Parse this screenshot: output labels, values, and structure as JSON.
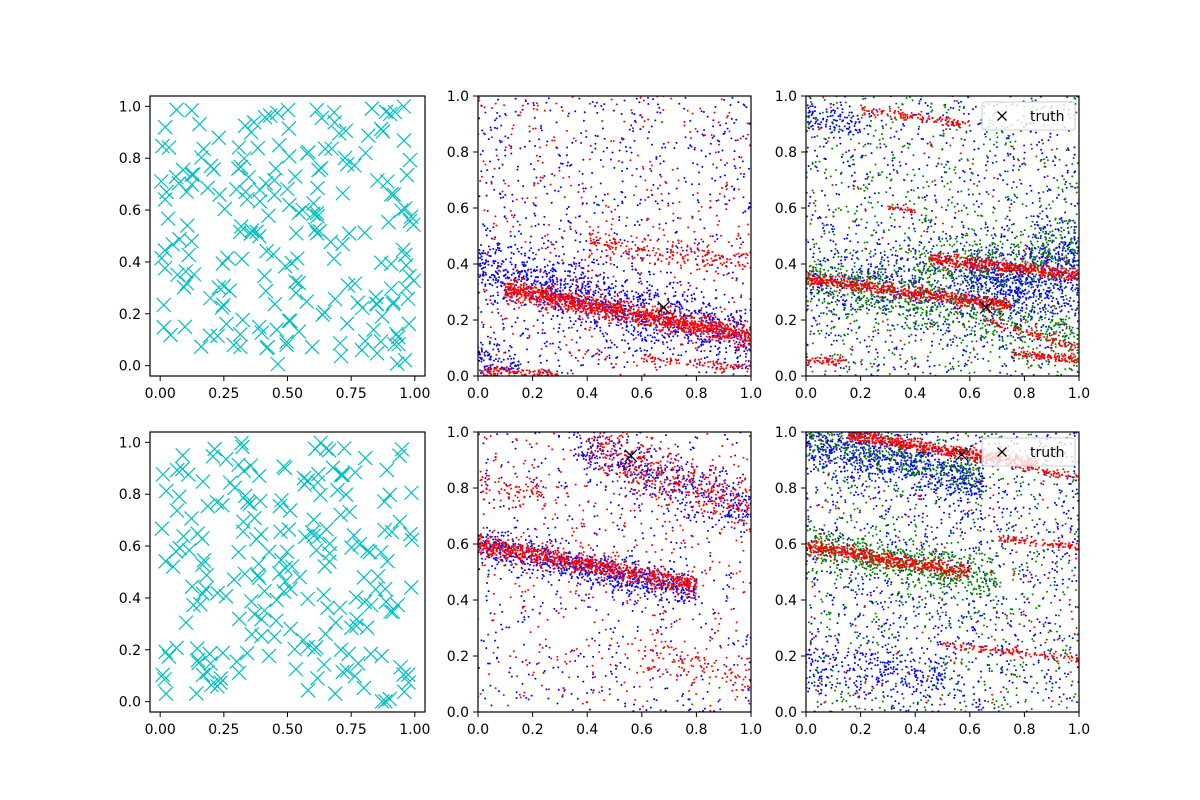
{
  "figure": {
    "background": "#ffffff"
  },
  "colors": {
    "cyan": "#00bfbf",
    "blue": "#0000ff",
    "red": "#ff0000",
    "green": "#008000",
    "black": "#000000"
  },
  "chart_data": [
    {
      "panel": "top-left",
      "type": "scatter",
      "marker": "x",
      "xlim": [
        -0.04,
        1.04
      ],
      "ylim": [
        -0.04,
        1.04
      ],
      "xticks": [
        0.0,
        0.25,
        0.5,
        0.75,
        1.0
      ],
      "xtick_labels": [
        "0.00",
        "0.25",
        "0.50",
        "0.75",
        "1.00"
      ],
      "yticks": [
        0.0,
        0.2,
        0.4,
        0.6,
        0.8,
        1.0
      ],
      "ytick_labels": [
        "0.0",
        "0.2",
        "0.4",
        "0.6",
        "0.8",
        "1.0"
      ],
      "grid": false,
      "series": [
        {
          "color": "#00bfbf",
          "count": 210,
          "distribution": "uniform",
          "x_range": [
            0,
            1
          ],
          "y_range": [
            0,
            1
          ]
        }
      ]
    },
    {
      "panel": "top-middle",
      "type": "scatter",
      "marker": "point",
      "xlim": [
        0,
        1
      ],
      "ylim": [
        0,
        1
      ],
      "xticks": [
        0.0,
        0.2,
        0.4,
        0.6,
        0.8,
        1.0
      ],
      "xtick_labels": [
        "0.0",
        "0.2",
        "0.4",
        "0.6",
        "0.8",
        "1.0"
      ],
      "yticks": [
        0.0,
        0.2,
        0.4,
        0.6,
        0.8,
        1.0
      ],
      "ytick_labels": [
        "0.0",
        "0.2",
        "0.4",
        "0.6",
        "0.8",
        "1.0"
      ],
      "grid": false,
      "truth": {
        "x": 0.68,
        "y": 0.245
      },
      "series": [
        {
          "color": "#0000ff",
          "count": 1900,
          "bands": [
            {
              "x_range": [
                0,
                1
              ],
              "y_start": 0.4,
              "y_end": 0.12,
              "spread": 0.06,
              "share": 0.55
            },
            {
              "x_range": [
                0,
                0.15
              ],
              "y_start": 0.06,
              "y_end": 0.03,
              "spread": 0.03,
              "share": 0.05
            }
          ],
          "background_share": 0.4
        },
        {
          "color": "#ff0000",
          "count": 2200,
          "bands": [
            {
              "x_range": [
                0.1,
                1
              ],
              "y_start": 0.31,
              "y_end": 0.14,
              "spread": 0.02,
              "share": 0.6
            },
            {
              "x_range": [
                0.4,
                1
              ],
              "y_start": 0.48,
              "y_end": 0.4,
              "spread": 0.025,
              "share": 0.1
            },
            {
              "x_range": [
                0,
                0.3
              ],
              "y_start": 0.02,
              "y_end": 0.0,
              "spread": 0.01,
              "share": 0.06
            },
            {
              "x_range": [
                0.6,
                1
              ],
              "y_start": 0.06,
              "y_end": 0.03,
              "spread": 0.01,
              "share": 0.04
            }
          ],
          "background_share": 0.2
        }
      ]
    },
    {
      "panel": "top-right",
      "type": "scatter",
      "marker": "point",
      "xlim": [
        0,
        1
      ],
      "ylim": [
        0,
        1
      ],
      "xticks": [
        0.0,
        0.2,
        0.4,
        0.6,
        0.8,
        1.0
      ],
      "xtick_labels": [
        "0.0",
        "0.2",
        "0.4",
        "0.6",
        "0.8",
        "1.0"
      ],
      "yticks": [
        0.0,
        0.2,
        0.4,
        0.6,
        0.8,
        1.0
      ],
      "ytick_labels": [
        "0.0",
        "0.2",
        "0.4",
        "0.6",
        "0.8",
        "1.0"
      ],
      "grid": false,
      "legend": {
        "placement": "upper right",
        "entries": [
          {
            "marker": "x",
            "color": "#000000",
            "label": "truth"
          }
        ]
      },
      "truth": {
        "x": 0.66,
        "y": 0.245
      },
      "series": [
        {
          "color": "#0000ff",
          "count": 2000,
          "bands": [
            {
              "x_range": [
                0,
                1
              ],
              "y_start": 0.36,
              "y_end": 0.28,
              "spread": 0.07,
              "share": 0.3
            },
            {
              "x_range": [
                0.6,
                1
              ],
              "y_start": 0.32,
              "y_end": 0.42,
              "spread": 0.07,
              "share": 0.25
            },
            {
              "x_range": [
                0,
                0.2
              ],
              "y_start": 0.93,
              "y_end": 0.9,
              "spread": 0.03,
              "share": 0.05
            }
          ],
          "background_share": 0.4
        },
        {
          "color": "#008000",
          "count": 1900,
          "bands": [
            {
              "x_range": [
                0,
                1
              ],
              "y_start": 0.36,
              "y_end": 0.13,
              "spread": 0.05,
              "share": 0.35
            },
            {
              "x_range": [
                0.4,
                1
              ],
              "y_start": 0.38,
              "y_end": 0.44,
              "spread": 0.06,
              "share": 0.2
            }
          ],
          "background_share": 0.45
        },
        {
          "color": "#ff0000",
          "count": 1500,
          "bands": [
            {
              "x_range": [
                0,
                0.75
              ],
              "y_start": 0.35,
              "y_end": 0.25,
              "spread": 0.012,
              "share": 0.38
            },
            {
              "x_range": [
                0.45,
                1
              ],
              "y_start": 0.42,
              "y_end": 0.36,
              "spread": 0.012,
              "share": 0.28
            },
            {
              "x_range": [
                0.2,
                0.6
              ],
              "y_start": 0.95,
              "y_end": 0.9,
              "spread": 0.008,
              "share": 0.08
            },
            {
              "x_range": [
                0,
                0.15
              ],
              "y_start": 0.06,
              "y_end": 0.05,
              "spread": 0.008,
              "share": 0.04
            },
            {
              "x_range": [
                0.75,
                1
              ],
              "y_start": 0.08,
              "y_end": 0.06,
              "spread": 0.008,
              "share": 0.07
            },
            {
              "x_range": [
                0.65,
                1
              ],
              "y_start": 0.2,
              "y_end": 0.1,
              "spread": 0.01,
              "share": 0.06
            },
            {
              "x_range": [
                0.3,
                0.4
              ],
              "y_start": 0.6,
              "y_end": 0.59,
              "spread": 0.005,
              "share": 0.02
            }
          ],
          "background_share": 0.07
        }
      ]
    },
    {
      "panel": "bottom-left",
      "type": "scatter",
      "marker": "x",
      "xlim": [
        -0.04,
        1.04
      ],
      "ylim": [
        -0.04,
        1.04
      ],
      "xticks": [
        0.0,
        0.25,
        0.5,
        0.75,
        1.0
      ],
      "xtick_labels": [
        "0.00",
        "0.25",
        "0.50",
        "0.75",
        "1.00"
      ],
      "yticks": [
        0.0,
        0.2,
        0.4,
        0.6,
        0.8,
        1.0
      ],
      "ytick_labels": [
        "0.0",
        "0.2",
        "0.4",
        "0.6",
        "0.8",
        "1.0"
      ],
      "grid": false,
      "series": [
        {
          "color": "#00bfbf",
          "count": 210,
          "distribution": "uniform",
          "x_range": [
            0,
            1
          ],
          "y_range": [
            0,
            1
          ]
        }
      ]
    },
    {
      "panel": "bottom-middle",
      "type": "scatter",
      "marker": "point",
      "xlim": [
        0,
        1
      ],
      "ylim": [
        0,
        1
      ],
      "xticks": [
        0.0,
        0.2,
        0.4,
        0.6,
        0.8,
        1.0
      ],
      "xtick_labels": [
        "0.0",
        "0.2",
        "0.4",
        "0.6",
        "0.8",
        "1.0"
      ],
      "yticks": [
        0.0,
        0.2,
        0.4,
        0.6,
        0.8,
        1.0
      ],
      "ytick_labels": [
        "0.0",
        "0.2",
        "0.4",
        "0.6",
        "0.8",
        "1.0"
      ],
      "grid": false,
      "truth": {
        "x": 0.56,
        "y": 0.915
      },
      "series": [
        {
          "color": "#0000ff",
          "count": 1700,
          "bands": [
            {
              "x_range": [
                0,
                0.8
              ],
              "y_start": 0.6,
              "y_end": 0.43,
              "spread": 0.03,
              "share": 0.45
            },
            {
              "x_range": [
                0.35,
                1
              ],
              "y_start": 0.96,
              "y_end": 0.72,
              "spread": 0.05,
              "share": 0.25
            }
          ],
          "background_share": 0.3
        },
        {
          "color": "#ff0000",
          "count": 1900,
          "bands": [
            {
              "x_range": [
                0,
                0.8
              ],
              "y_start": 0.6,
              "y_end": 0.45,
              "spread": 0.02,
              "share": 0.45
            },
            {
              "x_range": [
                0.4,
                1
              ],
              "y_start": 0.95,
              "y_end": 0.72,
              "spread": 0.05,
              "share": 0.22
            },
            {
              "x_range": [
                0.6,
                1
              ],
              "y_start": 0.22,
              "y_end": 0.12,
              "spread": 0.04,
              "share": 0.06
            },
            {
              "x_range": [
                0,
                0.25
              ],
              "y_start": 0.82,
              "y_end": 0.78,
              "spread": 0.03,
              "share": 0.04
            }
          ],
          "background_share": 0.23
        }
      ]
    },
    {
      "panel": "bottom-right",
      "type": "scatter",
      "marker": "point",
      "xlim": [
        0,
        1
      ],
      "ylim": [
        0,
        1
      ],
      "xticks": [
        0.0,
        0.2,
        0.4,
        0.6,
        0.8,
        1.0
      ],
      "xtick_labels": [
        "0.0",
        "0.2",
        "0.4",
        "0.6",
        "0.8",
        "1.0"
      ],
      "yticks": [
        0.0,
        0.2,
        0.4,
        0.6,
        0.8,
        1.0
      ],
      "ytick_labels": [
        "0.0",
        "0.2",
        "0.4",
        "0.6",
        "0.8",
        "1.0"
      ],
      "grid": false,
      "legend": {
        "placement": "upper right",
        "entries": [
          {
            "marker": "x",
            "color": "#000000",
            "label": "truth"
          }
        ]
      },
      "truth": {
        "x": 0.57,
        "y": 0.92
      },
      "series": [
        {
          "color": "#0000ff",
          "count": 2000,
          "bands": [
            {
              "x_range": [
                0,
                0.65
              ],
              "y_start": 0.97,
              "y_end": 0.82,
              "spread": 0.05,
              "share": 0.35
            },
            {
              "x_range": [
                0,
                0.5
              ],
              "y_start": 0.18,
              "y_end": 0.13,
              "spread": 0.04,
              "share": 0.1
            }
          ],
          "background_share": 0.55
        },
        {
          "color": "#008000",
          "count": 1700,
          "bands": [
            {
              "x_range": [
                0,
                0.7
              ],
              "y_start": 0.6,
              "y_end": 0.46,
              "spread": 0.04,
              "share": 0.35
            },
            {
              "x_range": [
                0,
                0.65
              ],
              "y_start": 0.98,
              "y_end": 0.85,
              "spread": 0.04,
              "share": 0.2
            }
          ],
          "background_share": 0.45
        },
        {
          "color": "#ff0000",
          "count": 1500,
          "bands": [
            {
              "x_range": [
                0.15,
                0.85
              ],
              "y_start": 0.99,
              "y_end": 0.88,
              "spread": 0.012,
              "share": 0.4
            },
            {
              "x_range": [
                0,
                0.6
              ],
              "y_start": 0.59,
              "y_end": 0.5,
              "spread": 0.012,
              "share": 0.33
            },
            {
              "x_range": [
                0.5,
                1
              ],
              "y_start": 0.24,
              "y_end": 0.19,
              "spread": 0.008,
              "share": 0.08
            },
            {
              "x_range": [
                0.7,
                1
              ],
              "y_start": 0.62,
              "y_end": 0.59,
              "spread": 0.008,
              "share": 0.06
            },
            {
              "x_range": [
                0.85,
                1
              ],
              "y_start": 0.86,
              "y_end": 0.84,
              "spread": 0.006,
              "share": 0.03
            }
          ],
          "background_share": 0.1
        }
      ]
    }
  ]
}
